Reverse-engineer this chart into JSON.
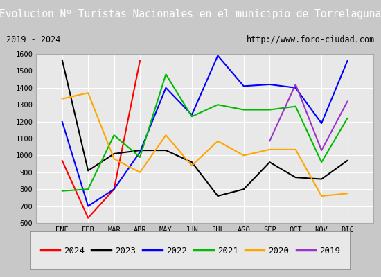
{
  "title": "Evolucion Nº Turistas Nacionales en el municipio de Torrelaguna",
  "subtitle_left": "2019 - 2024",
  "subtitle_right": "http://www.foro-ciudad.com",
  "title_bg_color": "#4472c4",
  "title_text_color": "#ffffff",
  "plot_bg_color": "#e8e8e8",
  "outer_bg_color": "#d0d0d0",
  "months": [
    "ENE",
    "FEB",
    "MAR",
    "ABR",
    "MAY",
    "JUN",
    "JUL",
    "AGO",
    "SEP",
    "OCT",
    "NOV",
    "DIC"
  ],
  "ylim": [
    600,
    1600
  ],
  "yticks": [
    600,
    700,
    800,
    900,
    1000,
    1100,
    1200,
    1300,
    1400,
    1500,
    1600
  ],
  "series": {
    "2024": {
      "color": "#ff0000",
      "values": [
        970,
        630,
        800,
        1560,
        null,
        null,
        null,
        null,
        null,
        null,
        null,
        null
      ]
    },
    "2023": {
      "color": "#000000",
      "values": [
        1565,
        910,
        1010,
        1030,
        1030,
        960,
        760,
        800,
        960,
        870,
        860,
        970
      ]
    },
    "2022": {
      "color": "#0000ff",
      "values": [
        1200,
        700,
        800,
        1020,
        1400,
        1240,
        1590,
        1410,
        1420,
        1400,
        1190,
        1560
      ]
    },
    "2021": {
      "color": "#00bb00",
      "values": [
        790,
        800,
        1120,
        990,
        1480,
        1230,
        1300,
        1270,
        1270,
        1290,
        960,
        1220
      ]
    },
    "2020": {
      "color": "#ffa500",
      "values": [
        1335,
        1370,
        980,
        900,
        1120,
        940,
        1085,
        1000,
        1035,
        1035,
        760,
        775
      ]
    },
    "2019": {
      "color": "#9933cc",
      "values": [
        null,
        null,
        null,
        null,
        null,
        null,
        null,
        null,
        1085,
        1420,
        1030,
        1320
      ]
    }
  },
  "legend_order": [
    "2024",
    "2023",
    "2022",
    "2021",
    "2020",
    "2019"
  ]
}
